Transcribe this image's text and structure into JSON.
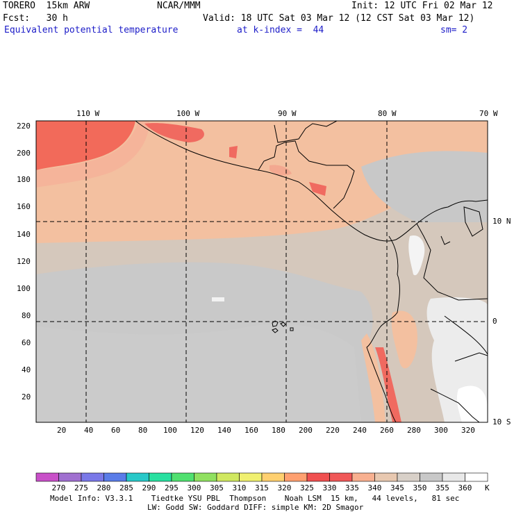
{
  "header": {
    "model": "TORERO  15km ARW",
    "org": "NCAR/MMM",
    "init": "Init: 12 UTC Fri 02 Mar 12",
    "fcst": "Fcst:   30 h",
    "valid": "Valid: 18 UTC Sat 03 Mar 12 (12 CST Sat 03 Mar 12)",
    "field": "Equivalent potential temperature",
    "level": "at k-index =  44",
    "smooth": "sm= 2"
  },
  "top_axis": [
    "110 W",
    "100 W",
    "90 W",
    "80 W",
    "70 W"
  ],
  "right_axis": [
    "10 N",
    "0",
    "10 S"
  ],
  "left_axis": [
    "220",
    "200",
    "180",
    "160",
    "140",
    "120",
    "100",
    "80",
    "60",
    "40",
    "20"
  ],
  "bottom_axis": [
    "20",
    "40",
    "60",
    "80",
    "100",
    "120",
    "140",
    "160",
    "180",
    "200",
    "220",
    "240",
    "260",
    "280",
    "300",
    "320"
  ],
  "colorbar": {
    "labels": [
      "270",
      "275",
      "280",
      "285",
      "290",
      "295",
      "300",
      "305",
      "310",
      "315",
      "320",
      "325",
      "330",
      "335",
      "340",
      "345",
      "350",
      "355",
      "360"
    ],
    "unit": "K",
    "colors": [
      "#c850c8",
      "#a070d0",
      "#7a78e8",
      "#5a7ce8",
      "#28c8c8",
      "#28e0a0",
      "#50e070",
      "#90e060",
      "#d0e860",
      "#f0f070",
      "#ffd070",
      "#ffa070",
      "#f05050",
      "#f05858",
      "#f8b090",
      "#e8c8b0",
      "#d8d0c8",
      "#c8c8c8",
      "#e8e8e8",
      "#ffffff"
    ]
  },
  "footer": {
    "line1": "Model Info: V3.3.1    Tiedtke YSU PBL  Thompson    Noah LSM  15 km,   44 levels,   81 sec",
    "line2": "LW: Godd SW: Goddard DIFF: simple KM: 2D Smagor"
  }
}
